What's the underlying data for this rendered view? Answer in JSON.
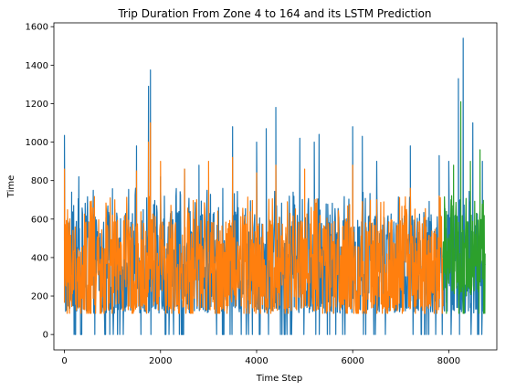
{
  "chart_data": {
    "type": "line",
    "title": "Trip Duration From Zone 4 to 164 and its LSTM Prediction",
    "xlabel": "Time Step",
    "ylabel": "Time",
    "xlim": [
      -220,
      9000
    ],
    "ylim": [
      -80,
      1620
    ],
    "x_ticks": [
      0,
      2000,
      4000,
      6000,
      8000
    ],
    "y_ticks": [
      0,
      200,
      400,
      600,
      800,
      1000,
      1200,
      1400,
      1600
    ],
    "grid": false,
    "legend": "none",
    "series": [
      {
        "color": "#1f77b4",
        "x_range": [
          0,
          8760
        ],
        "typical_low": 110,
        "typical_high": 640,
        "min": 0,
        "max": 1540,
        "peaks": [
          [
            0,
            1035
          ],
          [
            150,
            740
          ],
          [
            300,
            820
          ],
          [
            600,
            640
          ],
          [
            1000,
            660
          ],
          [
            1500,
            980
          ],
          [
            1750,
            1290
          ],
          [
            1790,
            1375
          ],
          [
            2000,
            820
          ],
          [
            2500,
            860
          ],
          [
            2800,
            880
          ],
          [
            3500,
            1080
          ],
          [
            4000,
            1000
          ],
          [
            4200,
            1070
          ],
          [
            4400,
            1180
          ],
          [
            4900,
            1020
          ],
          [
            5200,
            1000
          ],
          [
            5300,
            1040
          ],
          [
            6000,
            1080
          ],
          [
            6200,
            1030
          ],
          [
            6500,
            900
          ],
          [
            7200,
            980
          ],
          [
            7800,
            930
          ],
          [
            8000,
            900
          ],
          [
            8200,
            1330
          ],
          [
            8300,
            1540
          ],
          [
            8500,
            1100
          ],
          [
            8700,
            900
          ]
        ]
      },
      {
        "color": "#ff7f0e",
        "x_range": [
          0,
          7880
        ],
        "typical_low": 120,
        "typical_high": 600,
        "min": 110,
        "max": 1100,
        "peaks": [
          [
            0,
            860
          ],
          [
            600,
            600
          ],
          [
            1000,
            620
          ],
          [
            1500,
            850
          ],
          [
            1750,
            1000
          ],
          [
            1790,
            1100
          ],
          [
            2000,
            900
          ],
          [
            2500,
            860
          ],
          [
            3000,
            900
          ],
          [
            3500,
            920
          ],
          [
            4000,
            840
          ],
          [
            4400,
            880
          ],
          [
            5000,
            860
          ],
          [
            6000,
            880
          ],
          [
            6500,
            700
          ],
          [
            7200,
            760
          ],
          [
            7800,
            720
          ]
        ]
      },
      {
        "color": "#2ca02c",
        "x_range": [
          7880,
          8760
        ],
        "typical_low": 200,
        "typical_high": 620,
        "min": 110,
        "max": 1210,
        "peaks": [
          [
            7950,
            640
          ],
          [
            8100,
            880
          ],
          [
            8250,
            1210
          ],
          [
            8450,
            900
          ],
          [
            8650,
            960
          ]
        ]
      }
    ]
  }
}
